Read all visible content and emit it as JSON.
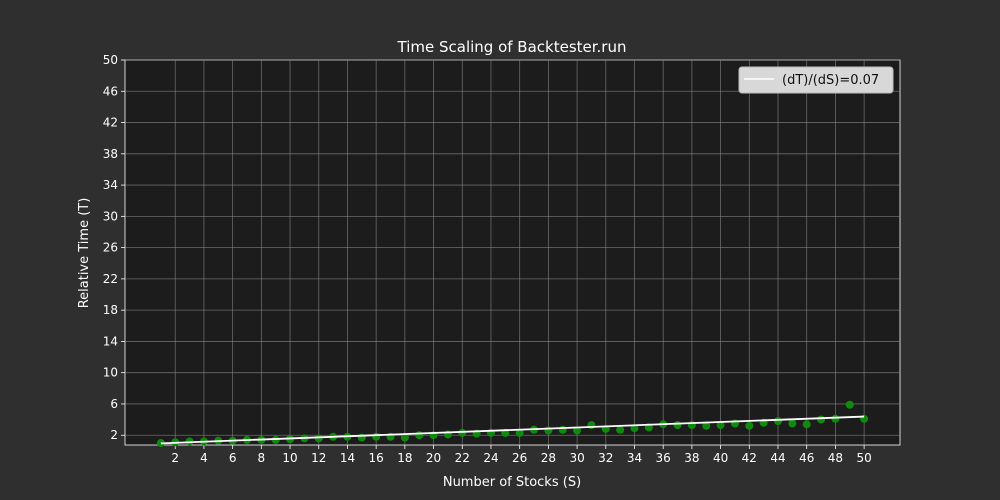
{
  "chart_data": {
    "type": "scatter",
    "title": "Time Scaling of Backtester.run",
    "xlabel": "Number of Stocks (S)",
    "ylabel": "Relative Time (T)",
    "xlim": [
      -1.5,
      52.5
    ],
    "ylim": [
      0.75,
      50
    ],
    "x_ticks": [
      2,
      4,
      6,
      8,
      10,
      12,
      14,
      16,
      18,
      20,
      22,
      24,
      26,
      28,
      30,
      32,
      34,
      36,
      38,
      40,
      42,
      44,
      46,
      48,
      50
    ],
    "y_ticks": [
      2,
      6,
      10,
      14,
      18,
      22,
      26,
      30,
      34,
      38,
      42,
      46,
      50
    ],
    "grid": true,
    "legend_position": "top-right",
    "colors": {
      "background": "#2f2f2f",
      "plot_background": "#1c1c1c",
      "points": "#0f8a0f",
      "fit_line": "#ffffff",
      "grid": "#8a8a8a"
    },
    "series": [
      {
        "kind": "scatter",
        "x": [
          1,
          2,
          3,
          4,
          5,
          6,
          7,
          8,
          9,
          10,
          11,
          12,
          13,
          14,
          15,
          16,
          17,
          18,
          19,
          20,
          21,
          22,
          23,
          24,
          25,
          26,
          27,
          28,
          29,
          30,
          31,
          32,
          33,
          34,
          35,
          36,
          37,
          38,
          39,
          40,
          41,
          42,
          43,
          44,
          45,
          46,
          47,
          48,
          49,
          50
        ],
        "y": [
          1.0,
          1.1,
          1.2,
          1.2,
          1.3,
          1.3,
          1.4,
          1.4,
          1.4,
          1.5,
          1.6,
          1.6,
          1.8,
          1.8,
          1.7,
          1.8,
          1.8,
          1.7,
          2.0,
          2.0,
          2.1,
          2.3,
          2.2,
          2.3,
          2.3,
          2.3,
          2.7,
          2.6,
          2.7,
          2.6,
          3.3,
          2.8,
          2.7,
          2.9,
          3.0,
          3.4,
          3.3,
          3.3,
          3.2,
          3.3,
          3.5,
          3.2,
          3.6,
          3.8,
          3.5,
          3.4,
          4.0,
          4.1,
          5.9,
          4.1
        ]
      },
      {
        "kind": "line",
        "name": "(dT)/(dS)=0.07",
        "x": [
          1,
          50
        ],
        "y": [
          0.96,
          4.39
        ]
      }
    ]
  }
}
